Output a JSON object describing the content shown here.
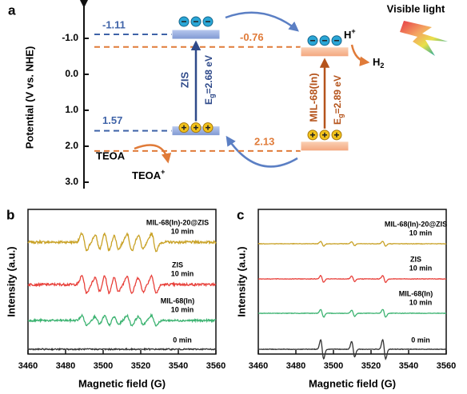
{
  "figure": {
    "panel_a": {
      "label": "a",
      "y_label": "Potential (V vs. NHE)",
      "yticks": [
        {
          "value": -1,
          "label": "-1.0"
        },
        {
          "value": 0,
          "label": "0.0"
        },
        {
          "value": 1,
          "label": "1.0"
        },
        {
          "value": 2,
          "label": "2.0"
        },
        {
          "value": 3,
          "label": "3.0"
        }
      ],
      "zis": {
        "name": "ZIS",
        "cb": -1.11,
        "vb": 1.57,
        "e": "E",
        "g": "g",
        "gap": "=2.68 eV"
      },
      "mil": {
        "name": "MIL-68(In)",
        "cb": -0.76,
        "vb": 2.13,
        "e": "E",
        "g": "g",
        "gap": "=2.89 eV"
      },
      "teoa": "TEOA",
      "teoa_ox": "TEOA",
      "plus": "+",
      "h": "H",
      "h2": "H",
      "two": "2",
      "light": "Visible light"
    },
    "panel_b": {
      "label": "b",
      "x_label": "Magnetic field (G)",
      "y_label": "Intensity (a.u.)",
      "xlim": [
        3460,
        3560
      ],
      "xticks": [
        3460,
        3480,
        3500,
        3520,
        3540,
        3560
      ],
      "series": [
        {
          "name": "MIL-68(In)-20@ZIS",
          "time": "10 min",
          "color": "#c9a227"
        },
        {
          "name": "ZIS",
          "time": "10 min",
          "color": "#e8413b"
        },
        {
          "name": "MIL-68(In)",
          "time": "10 min",
          "color": "#3cb371"
        },
        {
          "name": "0 min",
          "color": "#333333"
        }
      ]
    },
    "panel_c": {
      "label": "c",
      "x_label": "Magnetic field (G)",
      "y_label": "Intensity (a.u.)",
      "xlim": [
        3460,
        3560
      ],
      "xticks": [
        3460,
        3480,
        3500,
        3520,
        3540,
        3560
      ],
      "series": [
        {
          "name": "MIL-68(In)-20@ZIS",
          "time": "10 min",
          "color": "#c9a227"
        },
        {
          "name": "ZIS",
          "time": "10 min",
          "color": "#e8413b"
        },
        {
          "name": "MIL-68(In)",
          "time": "10 min",
          "color": "#3cb371"
        },
        {
          "name": "0 min",
          "color": "#333333"
        }
      ]
    }
  }
}
